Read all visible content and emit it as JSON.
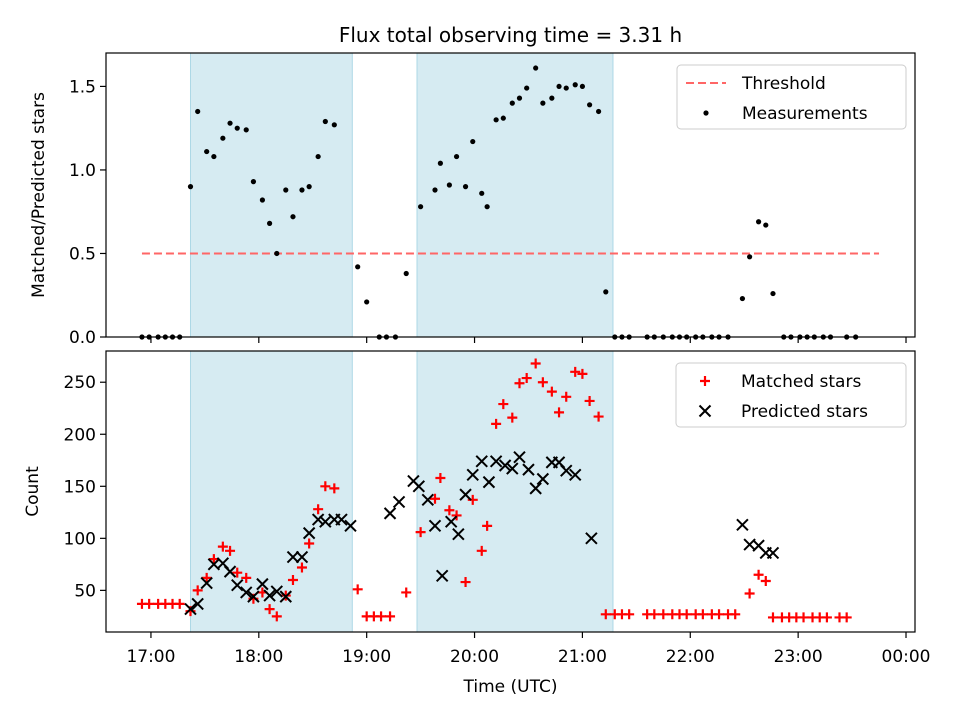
{
  "chart_data": {
    "type": "scatter",
    "title": "Flux total observing time = 3.31 h",
    "xlabel": "Time (UTC)",
    "x_ticks": [
      "17:00",
      "18:00",
      "19:00",
      "20:00",
      "21:00",
      "22:00",
      "23:00",
      "00:00"
    ],
    "shaded_intervals": [
      [
        "17:22",
        "18:52"
      ],
      [
        "19:28",
        "21:17"
      ]
    ],
    "shade_color": "#add8e6",
    "panels": [
      {
        "ylabel": "Matched/Predicted stars",
        "ylim": [
          0,
          1.7
        ],
        "y_ticks": [
          0.0,
          0.5,
          1.0,
          1.5
        ],
        "legend": "upper right",
        "threshold": {
          "name": "Threshold",
          "y": 0.5,
          "x_range": [
            "16:55",
            "23:45"
          ],
          "color": "#ff6666",
          "style": "dashed"
        },
        "series": [
          {
            "name": "Measurements",
            "marker": "dot",
            "color": "#000000",
            "points": [
              [
                "16:55",
                0
              ],
              [
                "16:59",
                0
              ],
              [
                "17:04",
                0
              ],
              [
                "17:08",
                0
              ],
              [
                "17:12",
                0
              ],
              [
                "17:16",
                0
              ],
              [
                "17:22",
                0.9
              ],
              [
                "17:26",
                1.35
              ],
              [
                "17:31",
                1.11
              ],
              [
                "17:35",
                1.08
              ],
              [
                "17:40",
                1.19
              ],
              [
                "17:44",
                1.28
              ],
              [
                "17:48",
                1.25
              ],
              [
                "17:53",
                1.24
              ],
              [
                "17:57",
                0.93
              ],
              [
                "18:02",
                0.82
              ],
              [
                "18:06",
                0.68
              ],
              [
                "18:10",
                0.5
              ],
              [
                "18:15",
                0.88
              ],
              [
                "18:19",
                0.72
              ],
              [
                "18:24",
                0.88
              ],
              [
                "18:28",
                0.9
              ],
              [
                "18:33",
                1.08
              ],
              [
                "18:37",
                1.29
              ],
              [
                "18:42",
                1.27
              ],
              [
                "18:55",
                0.42
              ],
              [
                "19:00",
                0.21
              ],
              [
                "19:07",
                0
              ],
              [
                "19:11",
                0
              ],
              [
                "19:16",
                0
              ],
              [
                "19:22",
                0.38
              ],
              [
                "19:30",
                0.78
              ],
              [
                "19:38",
                0.88
              ],
              [
                "19:41",
                1.04
              ],
              [
                "19:46",
                0.91
              ],
              [
                "19:50",
                1.08
              ],
              [
                "19:55",
                0.9
              ],
              [
                "19:59",
                1.17
              ],
              [
                "20:04",
                0.86
              ],
              [
                "20:07",
                0.78
              ],
              [
                "20:12",
                1.3
              ],
              [
                "20:16",
                1.31
              ],
              [
                "20:21",
                1.4
              ],
              [
                "20:25",
                1.43
              ],
              [
                "20:29",
                1.49
              ],
              [
                "20:34",
                1.61
              ],
              [
                "20:38",
                1.4
              ],
              [
                "20:43",
                1.43
              ],
              [
                "20:47",
                1.5
              ],
              [
                "20:51",
                1.49
              ],
              [
                "20:56",
                1.51
              ],
              [
                "21:00",
                1.5
              ],
              [
                "21:04",
                1.39
              ],
              [
                "21:09",
                1.35
              ],
              [
                "21:13",
                0.27
              ],
              [
                "21:18",
                0
              ],
              [
                "21:22",
                0
              ],
              [
                "21:26",
                0
              ],
              [
                "21:36",
                0
              ],
              [
                "21:40",
                0
              ],
              [
                "21:45",
                0
              ],
              [
                "21:50",
                0
              ],
              [
                "21:54",
                0
              ],
              [
                "21:58",
                0
              ],
              [
                "22:03",
                0
              ],
              [
                "22:07",
                0
              ],
              [
                "22:12",
                0
              ],
              [
                "22:16",
                0
              ],
              [
                "22:21",
                0
              ],
              [
                "22:29",
                0.23
              ],
              [
                "22:33",
                0.48
              ],
              [
                "22:38",
                0.69
              ],
              [
                "22:42",
                0.67
              ],
              [
                "22:46",
                0.26
              ],
              [
                "22:52",
                0
              ],
              [
                "22:56",
                0
              ],
              [
                "23:01",
                0
              ],
              [
                "23:05",
                0
              ],
              [
                "23:09",
                0
              ],
              [
                "23:14",
                0
              ],
              [
                "23:18",
                0
              ],
              [
                "23:27",
                0
              ],
              [
                "23:32",
                0
              ]
            ]
          }
        ]
      },
      {
        "ylabel": "Count",
        "ylim": [
          10,
          280
        ],
        "y_ticks": [
          50,
          100,
          150,
          200,
          250
        ],
        "legend": "upper right",
        "series": [
          {
            "name": "Matched stars",
            "marker": "plus",
            "color": "#ff0000",
            "points": [
              [
                "16:55",
                37
              ],
              [
                "16:59",
                37
              ],
              [
                "17:04",
                37
              ],
              [
                "17:08",
                37
              ],
              [
                "17:12",
                37
              ],
              [
                "17:16",
                37
              ],
              [
                "17:22",
                30
              ],
              [
                "17:26",
                50
              ],
              [
                "17:31",
                62
              ],
              [
                "17:35",
                80
              ],
              [
                "17:40",
                92
              ],
              [
                "17:44",
                88
              ],
              [
                "17:48",
                67
              ],
              [
                "17:53",
                62
              ],
              [
                "17:57",
                42
              ],
              [
                "18:02",
                48
              ],
              [
                "18:06",
                32
              ],
              [
                "18:10",
                25
              ],
              [
                "18:15",
                45
              ],
              [
                "18:19",
                60
              ],
              [
                "18:24",
                72
              ],
              [
                "18:28",
                95
              ],
              [
                "18:33",
                128
              ],
              [
                "18:37",
                150
              ],
              [
                "18:42",
                148
              ],
              [
                "18:55",
                51
              ],
              [
                "19:00",
                25
              ],
              [
                "19:04",
                25
              ],
              [
                "19:08",
                25
              ],
              [
                "19:13",
                25
              ],
              [
                "19:22",
                48
              ],
              [
                "19:30",
                106
              ],
              [
                "19:38",
                138
              ],
              [
                "19:41",
                158
              ],
              [
                "19:46",
                127
              ],
              [
                "19:50",
                122
              ],
              [
                "19:55",
                58
              ],
              [
                "19:59",
                137
              ],
              [
                "20:04",
                88
              ],
              [
                "20:07",
                112
              ],
              [
                "20:12",
                210
              ],
              [
                "20:16",
                229
              ],
              [
                "20:21",
                216
              ],
              [
                "20:25",
                249
              ],
              [
                "20:29",
                254
              ],
              [
                "20:34",
                268
              ],
              [
                "20:38",
                250
              ],
              [
                "20:43",
                241
              ],
              [
                "20:47",
                221
              ],
              [
                "20:51",
                236
              ],
              [
                "20:56",
                260
              ],
              [
                "21:00",
                258
              ],
              [
                "21:04",
                232
              ],
              [
                "21:09",
                217
              ],
              [
                "21:13",
                27
              ],
              [
                "21:18",
                27
              ],
              [
                "21:22",
                27
              ],
              [
                "21:26",
                27
              ],
              [
                "21:36",
                27
              ],
              [
                "21:40",
                27
              ],
              [
                "21:45",
                27
              ],
              [
                "21:50",
                27
              ],
              [
                "21:54",
                27
              ],
              [
                "21:58",
                27
              ],
              [
                "22:03",
                27
              ],
              [
                "22:07",
                27
              ],
              [
                "22:12",
                27
              ],
              [
                "22:16",
                27
              ],
              [
                "22:21",
                27
              ],
              [
                "22:25",
                27
              ],
              [
                "22:33",
                47
              ],
              [
                "22:38",
                65
              ],
              [
                "22:42",
                59
              ],
              [
                "22:46",
                24
              ],
              [
                "22:51",
                24
              ],
              [
                "22:55",
                24
              ],
              [
                "22:59",
                24
              ],
              [
                "23:03",
                24
              ],
              [
                "23:08",
                24
              ],
              [
                "23:12",
                24
              ],
              [
                "23:16",
                24
              ],
              [
                "23:23",
                24
              ],
              [
                "23:27",
                24
              ]
            ]
          },
          {
            "name": "Predicted stars",
            "marker": "cross",
            "color": "#000000",
            "points": [
              [
                "17:22",
                32
              ],
              [
                "17:26",
                37
              ],
              [
                "17:31",
                57
              ],
              [
                "17:35",
                75
              ],
              [
                "17:40",
                76
              ],
              [
                "17:44",
                68
              ],
              [
                "17:48",
                55
              ],
              [
                "17:53",
                48
              ],
              [
                "17:57",
                44
              ],
              [
                "18:02",
                56
              ],
              [
                "18:06",
                45
              ],
              [
                "18:10",
                49
              ],
              [
                "18:15",
                44
              ],
              [
                "18:19",
                82
              ],
              [
                "18:24",
                82
              ],
              [
                "18:28",
                105
              ],
              [
                "18:33",
                118
              ],
              [
                "18:37",
                116
              ],
              [
                "18:42",
                118
              ],
              [
                "18:46",
                118
              ],
              [
                "18:51",
                112
              ],
              [
                "19:13",
                124
              ],
              [
                "19:18",
                135
              ],
              [
                "19:26",
                155
              ],
              [
                "19:29",
                150
              ],
              [
                "19:34",
                137
              ],
              [
                "19:38",
                112
              ],
              [
                "19:42",
                64
              ],
              [
                "19:47",
                116
              ],
              [
                "19:51",
                104
              ],
              [
                "19:55",
                142
              ],
              [
                "19:59",
                161
              ],
              [
                "20:04",
                174
              ],
              [
                "20:08",
                154
              ],
              [
                "20:12",
                174
              ],
              [
                "20:17",
                170
              ],
              [
                "20:21",
                167
              ],
              [
                "20:25",
                178
              ],
              [
                "20:30",
                166
              ],
              [
                "20:34",
                148
              ],
              [
                "20:38",
                157
              ],
              [
                "20:43",
                173
              ],
              [
                "20:47",
                173
              ],
              [
                "20:51",
                165
              ],
              [
                "20:56",
                161
              ],
              [
                "21:05",
                100
              ],
              [
                "22:29",
                113
              ],
              [
                "22:33",
                94
              ],
              [
                "22:38",
                93
              ],
              [
                "22:42",
                86
              ],
              [
                "22:46",
                86
              ]
            ]
          }
        ]
      }
    ]
  }
}
